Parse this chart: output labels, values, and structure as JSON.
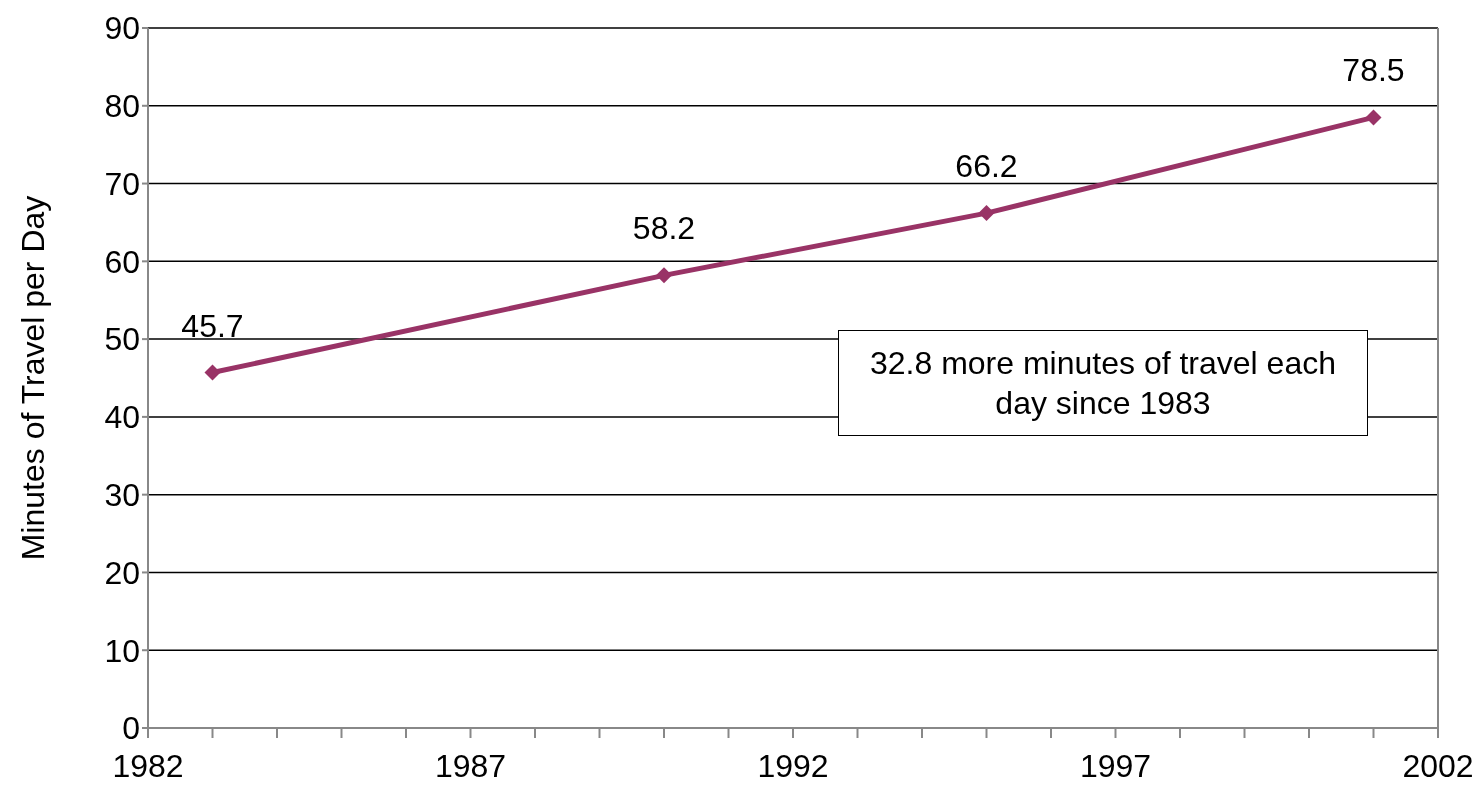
{
  "chart_data": {
    "type": "line",
    "ylabel": "Minutes of Travel per Day",
    "x": [
      1983,
      1990,
      1995,
      2001
    ],
    "series": [
      {
        "color": "#993366",
        "values": [
          45.7,
          58.2,
          66.2,
          78.5
        ]
      }
    ],
    "xlim": [
      1982,
      2002
    ],
    "xticks": [
      1982,
      {
        "value": 1983,
        "label": null
      },
      {
        "value": 1984,
        "label": null
      },
      {
        "value": 1985,
        "label": null
      },
      {
        "value": 1986,
        "label": null
      },
      1987,
      {
        "value": 1988,
        "label": null
      },
      {
        "value": 1989,
        "label": null
      },
      {
        "value": 1990,
        "label": null
      },
      {
        "value": 1991,
        "label": null
      },
      1992,
      {
        "value": 1993,
        "label": null
      },
      {
        "value": 1994,
        "label": null
      },
      {
        "value": 1995,
        "label": null
      },
      {
        "value": 1996,
        "label": null
      },
      1997,
      {
        "value": 1998,
        "label": null
      },
      {
        "value": 1999,
        "label": null
      },
      {
        "value": 2000,
        "label": null
      },
      {
        "value": 2001,
        "label": null
      },
      2002
    ],
    "ylim": [
      0,
      90
    ],
    "yticks": [
      0,
      10,
      20,
      30,
      40,
      50,
      60,
      70,
      80,
      90
    ],
    "grid": "y",
    "marker": "diamond",
    "data_labels": true,
    "annotations": [
      "32.8 more minutes of travel each day since 1983"
    ]
  }
}
